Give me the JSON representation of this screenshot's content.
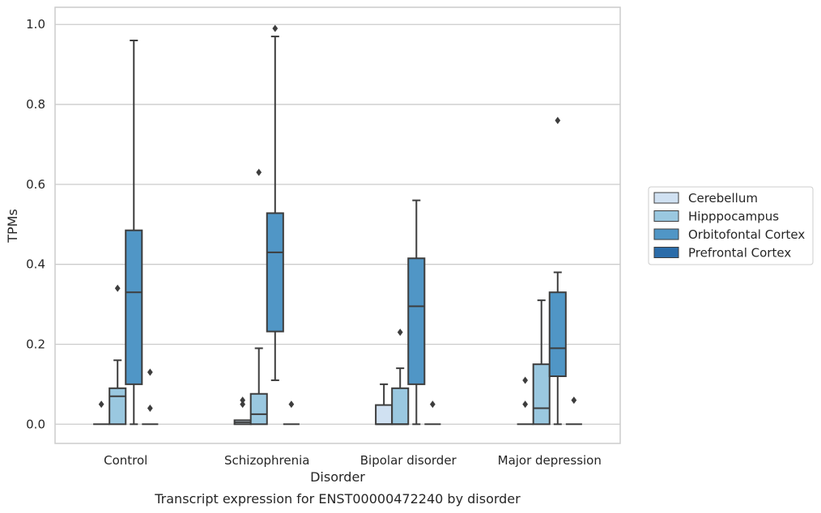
{
  "caption": "Transcript expression for ENST00000472240 by disorder",
  "chart_data": {
    "type": "box",
    "xlabel": "Disorder",
    "ylabel": "TPMs",
    "ylim": [
      -0.048,
      1.043
    ],
    "yticks": [
      0.0,
      0.2,
      0.4,
      0.6,
      0.8,
      1.0
    ],
    "ytick_labels": [
      "0.0",
      "0.2",
      "0.4",
      "0.6",
      "0.8",
      "1.0"
    ],
    "grid": "horizontal",
    "legend_position": "center-right",
    "categories": [
      "Control",
      "Schizophrenia",
      "Bipolar disorder",
      "Major depression"
    ],
    "series": [
      {
        "name": "Cerebellum",
        "color": "#d0e1f2",
        "boxes": [
          {
            "q1": 0.0,
            "median": 0.0,
            "q3": 0.0,
            "whislo": 0.0,
            "whishi": 0.0,
            "fliers": [
              0.05
            ]
          },
          {
            "q1": 0.0,
            "median": 0.005,
            "q3": 0.01,
            "whislo": 0.0,
            "whishi": 0.01,
            "fliers": [
              0.05,
              0.06
            ]
          },
          {
            "q1": 0.0,
            "median": 0.0,
            "q3": 0.048,
            "whislo": 0.0,
            "whishi": 0.1,
            "fliers": []
          },
          {
            "q1": 0.0,
            "median": 0.0,
            "q3": 0.0,
            "whislo": 0.0,
            "whishi": 0.0,
            "fliers": [
              0.05,
              0.11
            ]
          }
        ]
      },
      {
        "name": "Hipppocampus",
        "color": "#9ac8e0",
        "boxes": [
          {
            "q1": 0.0,
            "median": 0.07,
            "q3": 0.09,
            "whislo": 0.0,
            "whishi": 0.16,
            "fliers": [
              0.34
            ]
          },
          {
            "q1": 0.0,
            "median": 0.025,
            "q3": 0.076,
            "whislo": 0.0,
            "whishi": 0.19,
            "fliers": [
              0.63
            ]
          },
          {
            "q1": 0.0,
            "median": 0.0,
            "q3": 0.09,
            "whislo": 0.0,
            "whishi": 0.14,
            "fliers": [
              0.23
            ]
          },
          {
            "q1": 0.0,
            "median": 0.04,
            "q3": 0.15,
            "whislo": 0.0,
            "whishi": 0.31,
            "fliers": []
          }
        ]
      },
      {
        "name": "Orbitofontal Cortex",
        "color": "#5096c6",
        "boxes": [
          {
            "q1": 0.1,
            "median": 0.33,
            "q3": 0.485,
            "whislo": 0.0,
            "whishi": 0.96,
            "fliers": []
          },
          {
            "q1": 0.232,
            "median": 0.43,
            "q3": 0.528,
            "whislo": 0.11,
            "whishi": 0.97,
            "fliers": [
              0.99
            ]
          },
          {
            "q1": 0.1,
            "median": 0.295,
            "q3": 0.415,
            "whislo": 0.0,
            "whishi": 0.56,
            "fliers": []
          },
          {
            "q1": 0.12,
            "median": 0.19,
            "q3": 0.33,
            "whislo": 0.0,
            "whishi": 0.38,
            "fliers": [
              0.76
            ]
          }
        ]
      },
      {
        "name": "Prefrontal Cortex",
        "color": "#2b6ca9",
        "boxes": [
          {
            "q1": 0.0,
            "median": 0.0,
            "q3": 0.0,
            "whislo": 0.0,
            "whishi": 0.0,
            "fliers": [
              0.04,
              0.13
            ]
          },
          {
            "q1": 0.0,
            "median": 0.0,
            "q3": 0.0,
            "whislo": 0.0,
            "whishi": 0.0,
            "fliers": [
              0.05
            ]
          },
          {
            "q1": 0.0,
            "median": 0.0,
            "q3": 0.0,
            "whislo": 0.0,
            "whishi": 0.0,
            "fliers": [
              0.05
            ]
          },
          {
            "q1": 0.0,
            "median": 0.0,
            "q3": 0.0,
            "whislo": 0.0,
            "whishi": 0.0,
            "fliers": [
              0.06
            ]
          }
        ]
      }
    ]
  }
}
